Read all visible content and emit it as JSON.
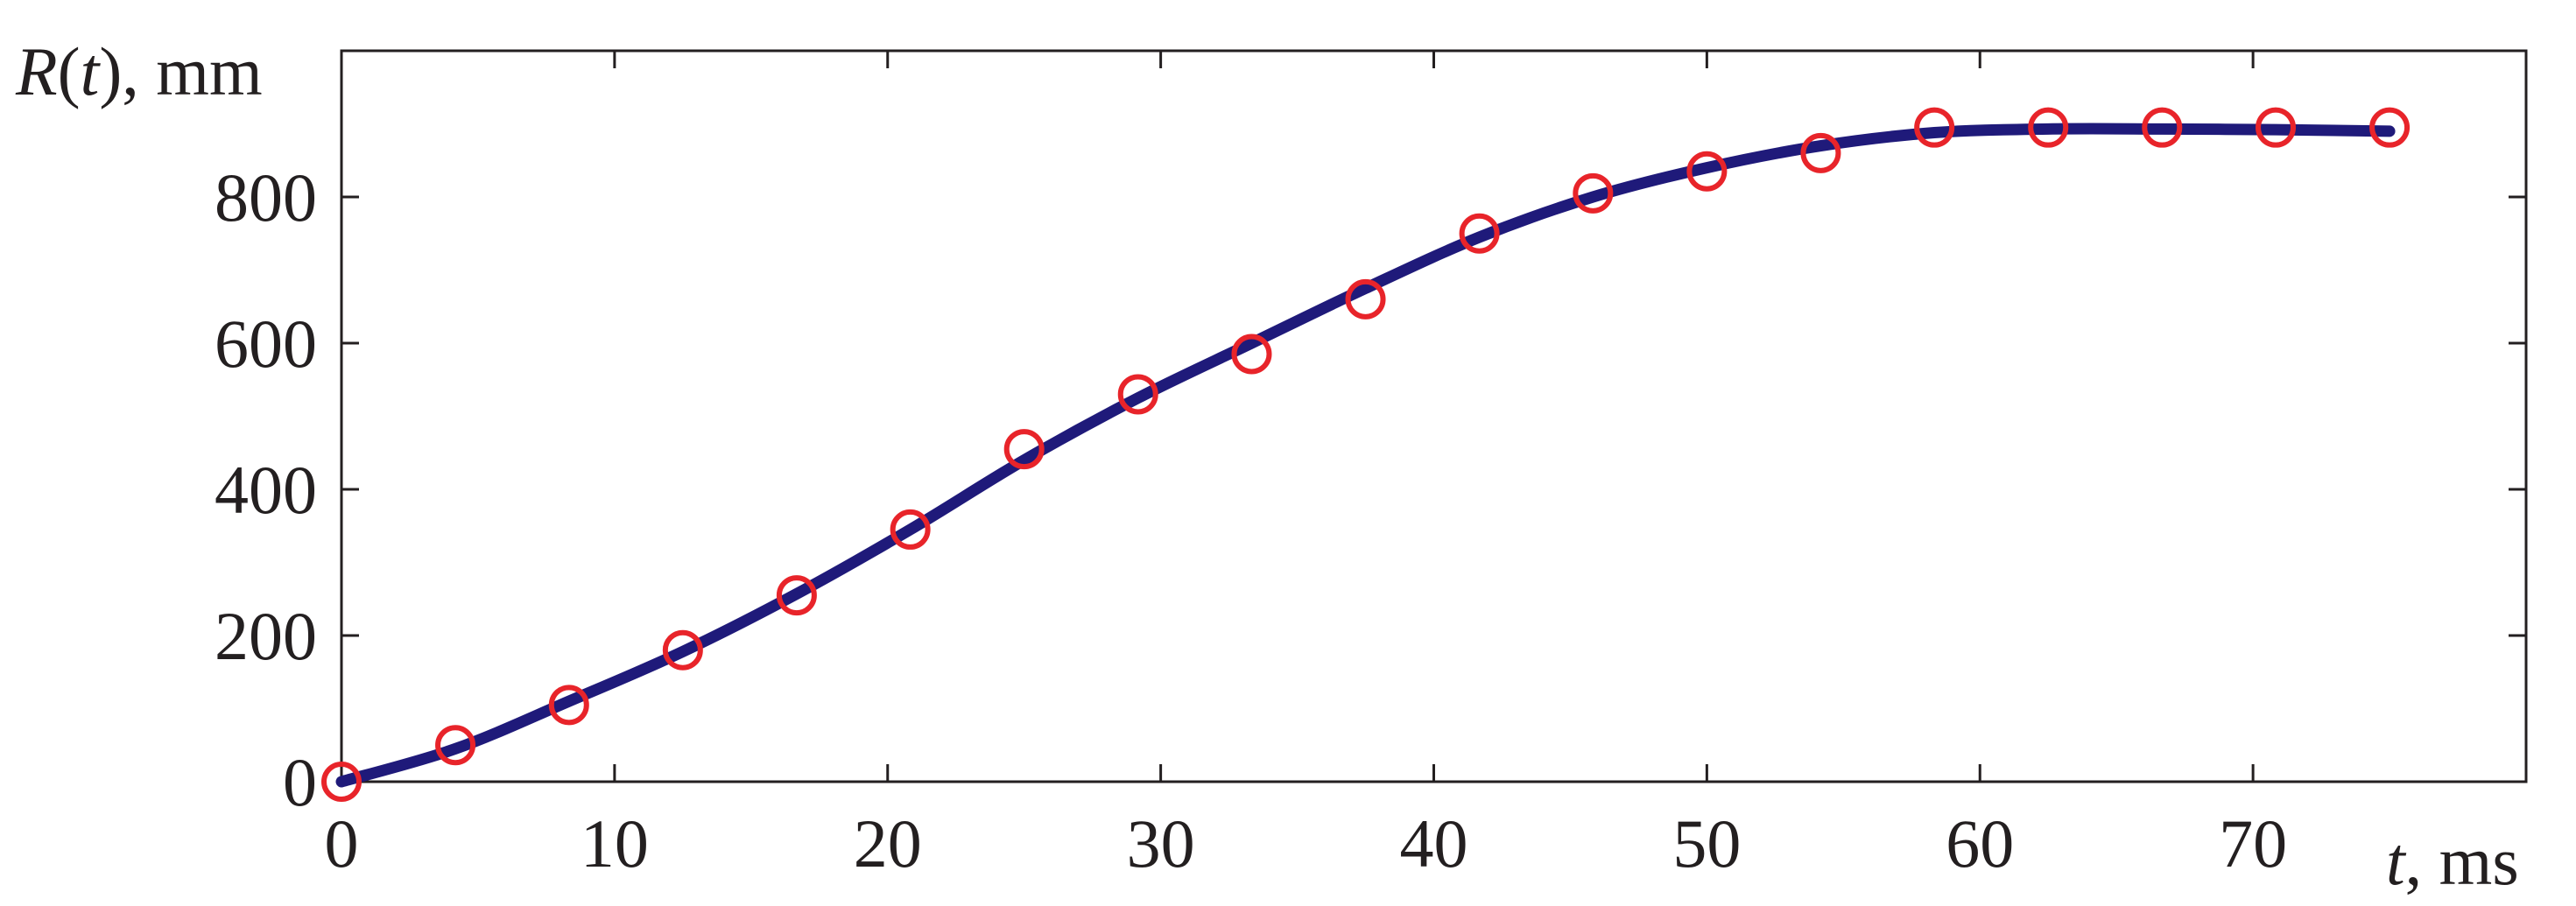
{
  "chart_data": {
    "type": "line",
    "xlabel_var": "t",
    "xlabel_unit": ", ms",
    "ylabel_var": "R",
    "ylabel_arg": "t",
    "ylabel_unit": ", mm",
    "xlim": [
      0,
      80
    ],
    "ylim": [
      0,
      1000
    ],
    "x_ticks": [
      0,
      10,
      20,
      30,
      40,
      50,
      60,
      70
    ],
    "y_ticks": [
      0,
      200,
      400,
      600,
      800
    ],
    "grid": false,
    "series": [
      {
        "kind": "line",
        "color": "#1f1a7a",
        "x": [
          0,
          4.17,
          8.33,
          12.5,
          16.67,
          20.83,
          25.0,
          29.17,
          33.33,
          37.5,
          41.67,
          45.83,
          50.0,
          54.17,
          58.33,
          62.5,
          66.67,
          70.83,
          75.0
        ],
        "y": [
          0,
          45,
          110,
          178,
          257,
          345,
          440,
          525,
          600,
          675,
          745,
          800,
          840,
          870,
          888,
          893,
          893,
          892,
          890
        ]
      },
      {
        "kind": "markers",
        "marker": "open-circle",
        "color": "#e8242a",
        "x": [
          0,
          4.17,
          8.33,
          12.5,
          16.67,
          20.83,
          25.0,
          29.17,
          33.33,
          37.5,
          41.67,
          45.83,
          50.0,
          54.17,
          58.33,
          62.5,
          66.67,
          70.83,
          75.0
        ],
        "y": [
          0,
          50,
          105,
          180,
          255,
          345,
          455,
          530,
          585,
          660,
          750,
          805,
          835,
          860,
          895,
          895,
          895,
          895,
          895
        ]
      }
    ]
  }
}
